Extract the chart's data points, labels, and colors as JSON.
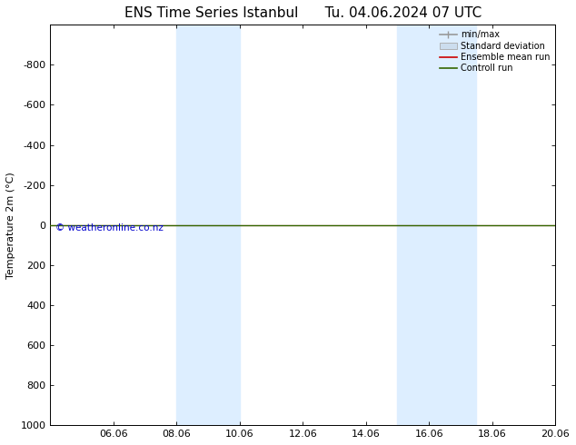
{
  "title_left": "ENS Time Series Istanbul",
  "title_right": "Tu. 04.06.2024 07 UTC",
  "ylabel": "Temperature 2m (°C)",
  "xtick_labels": [
    "06.06",
    "08.06",
    "10.06",
    "12.06",
    "14.06",
    "16.06",
    "18.06",
    "20.06"
  ],
  "xtick_positions": [
    2,
    4,
    6,
    8,
    10,
    12,
    14,
    16
  ],
  "xlim": [
    0,
    16
  ],
  "ylim": [
    -1000,
    1000
  ],
  "ytick_positions": [
    -800,
    -600,
    -400,
    -200,
    0,
    200,
    400,
    600,
    800,
    1000
  ],
  "ytick_labels": [
    "-800",
    "-600",
    "-400",
    "-200",
    "0",
    "200",
    "400",
    "600",
    "800",
    "1000"
  ],
  "shaded_bands": [
    {
      "x_start": 4.0,
      "x_end": 5.0
    },
    {
      "x_start": 5.0,
      "x_end": 6.0
    },
    {
      "x_start": 11.0,
      "x_end": 12.0
    },
    {
      "x_start": 12.0,
      "x_end": 13.5
    }
  ],
  "shaded_bands2": [
    {
      "x_start": 4.0,
      "x_end": 6.0
    },
    {
      "x_start": 11.0,
      "x_end": 13.5
    }
  ],
  "shaded_color": "#ddeeff",
  "green_line_y": 0,
  "green_line_color": "#336600",
  "red_line_y": 0,
  "red_line_color": "#cc0000",
  "background_color": "#ffffff",
  "plot_bg_color": "#ffffff",
  "watermark": "© weatheronline.co.nz",
  "watermark_color": "#0000cc",
  "title_fontsize": 11,
  "axis_fontsize": 8,
  "tick_fontsize": 8
}
